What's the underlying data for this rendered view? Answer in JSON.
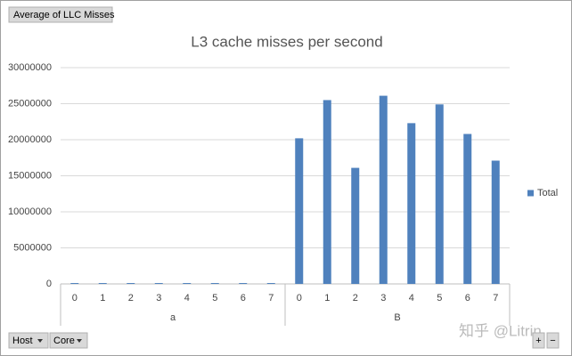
{
  "pivot": {
    "value_field": "Average of LLC Misses",
    "row_fields": [
      "Host",
      "Core"
    ],
    "zoom_buttons": [
      "+",
      "−"
    ]
  },
  "watermark": "知乎 @Litrin",
  "chart_data": {
    "type": "bar",
    "title": "L3 cache misses per second",
    "categories": [
      "0",
      "1",
      "2",
      "3",
      "4",
      "5",
      "6",
      "7",
      "0",
      "1",
      "2",
      "3",
      "4",
      "5",
      "6",
      "7"
    ],
    "category_groups": [
      "a",
      "a",
      "a",
      "a",
      "a",
      "a",
      "a",
      "a",
      "B",
      "B",
      "B",
      "B",
      "B",
      "B",
      "B",
      "B"
    ],
    "series": [
      {
        "name": "Total",
        "color": "#4f81bd",
        "values": [
          120000,
          120000,
          120000,
          120000,
          120000,
          120000,
          120000,
          120000,
          20200000,
          25500000,
          16100000,
          26100000,
          22300000,
          24900000,
          20800000,
          17100000
        ]
      }
    ],
    "ylim": [
      0,
      30000000
    ],
    "yticks": [
      0,
      5000000,
      10000000,
      15000000,
      20000000,
      25000000,
      30000000
    ],
    "grid": true,
    "legend": "right"
  }
}
